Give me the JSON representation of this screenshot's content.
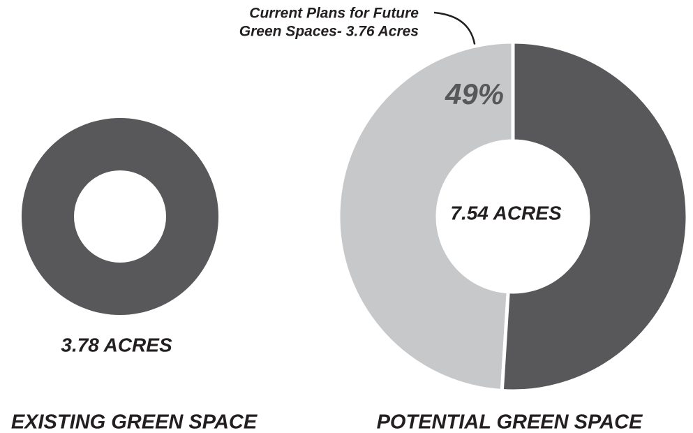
{
  "chart_data": [
    {
      "type": "donut",
      "title": "EXISTING GREEN SPACE",
      "center_label": "3.78 ACRES",
      "values": [
        100
      ],
      "colors": [
        "#58585a"
      ]
    },
    {
      "type": "donut",
      "title": "POTENTIAL GREEN SPACE",
      "center_label": "7.54 ACRES",
      "annotation": [
        "Current Plans for Future",
        "Green Spaces- 3.76 Acres"
      ],
      "values": [
        49,
        51
      ],
      "value_labels": [
        "49%",
        null
      ],
      "colors": [
        "#c7c8ca",
        "#58585a"
      ]
    }
  ]
}
